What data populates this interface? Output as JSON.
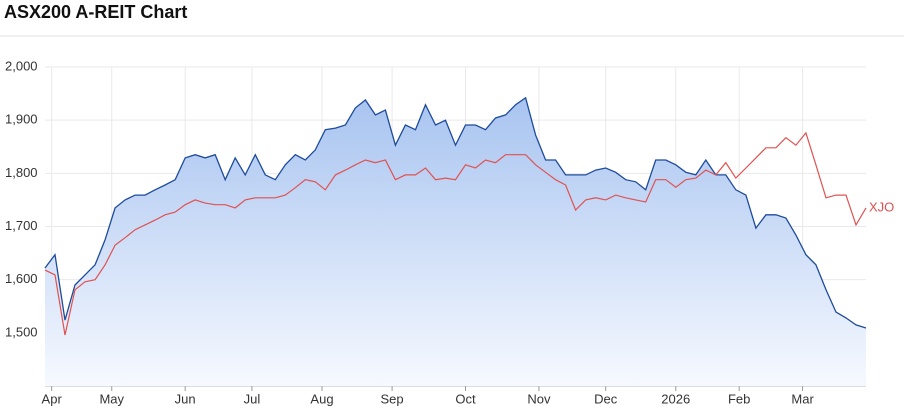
{
  "chart_data": {
    "type": "line",
    "title": "ASX200 A-REIT Chart",
    "x": [
      0,
      3,
      6,
      9,
      12,
      15,
      18,
      21,
      24,
      27,
      30,
      33,
      36,
      39,
      42,
      45,
      48,
      51,
      54,
      57,
      60,
      63,
      66,
      69,
      72,
      75,
      78,
      81,
      84,
      87,
      90,
      93,
      96,
      99,
      102,
      105,
      108,
      111,
      114,
      117,
      120,
      123,
      126,
      129,
      132,
      135,
      138,
      141,
      144,
      147,
      150,
      153,
      156,
      159,
      162,
      165,
      168,
      171,
      174,
      177,
      180,
      183,
      186,
      189,
      192,
      195,
      198,
      201,
      204,
      207,
      210,
      213,
      216,
      219,
      222,
      225,
      228,
      231,
      234,
      237,
      240,
      243,
      246
    ],
    "xlim": [
      0,
      246
    ],
    "xticks": [
      {
        "value": 2,
        "label": "Apr"
      },
      {
        "value": 20,
        "label": "May"
      },
      {
        "value": 42,
        "label": "Jun"
      },
      {
        "value": 62,
        "label": "Jul"
      },
      {
        "value": 83,
        "label": "Aug"
      },
      {
        "value": 104,
        "label": "Sep"
      },
      {
        "value": 126,
        "label": "Oct"
      },
      {
        "value": 148,
        "label": "Nov"
      },
      {
        "value": 168,
        "label": "Dec"
      },
      {
        "value": 189,
        "label": "2026"
      },
      {
        "value": 208,
        "label": "Feb"
      },
      {
        "value": 227,
        "label": "Mar"
      }
    ],
    "ylim": [
      1400,
      2000
    ],
    "yticks": [
      {
        "value": 1500,
        "label": "1,500"
      },
      {
        "value": 1600,
        "label": "1,600"
      },
      {
        "value": 1700,
        "label": "1,700"
      },
      {
        "value": 1800,
        "label": "1,800"
      },
      {
        "value": 1900,
        "label": "1,900"
      },
      {
        "value": 2000,
        "label": "2,000"
      }
    ],
    "grid": true,
    "series": [
      {
        "type": "area",
        "color": "#1d4b9b",
        "values": [
          1622,
          1647,
          1524,
          1590,
          1609,
          1628,
          1675,
          1735,
          1750,
          1759,
          1759,
          1769,
          1778,
          1788,
          1829,
          1835,
          1829,
          1835,
          1788,
          1829,
          1797,
          1835,
          1797,
          1788,
          1816,
          1835,
          1825,
          1844,
          1882,
          1885,
          1891,
          1923,
          1938,
          1910,
          1919,
          1853,
          1891,
          1882,
          1929,
          1891,
          1900,
          1853,
          1891,
          1891,
          1882,
          1904,
          1910,
          1929,
          1942,
          1872,
          1825,
          1825,
          1797,
          1797,
          1797,
          1806,
          1810,
          1802,
          1788,
          1784,
          1769,
          1825,
          1825,
          1816,
          1802,
          1797,
          1825,
          1797,
          1797,
          1769,
          1759,
          1697,
          1722,
          1722,
          1716,
          1684,
          1647,
          1628,
          1581,
          1539,
          1528,
          1515,
          1509
        ]
      },
      {
        "type": "line",
        "name": "XJO",
        "color": "#e05252",
        "values": [
          1618,
          1609,
          1496,
          1581,
          1596,
          1600,
          1628,
          1665,
          1679,
          1694,
          1703,
          1712,
          1722,
          1727,
          1741,
          1750,
          1744,
          1741,
          1741,
          1735,
          1750,
          1754,
          1754,
          1754,
          1759,
          1773,
          1788,
          1784,
          1769,
          1797,
          1806,
          1816,
          1825,
          1820,
          1825,
          1788,
          1797,
          1797,
          1810,
          1788,
          1791,
          1788,
          1816,
          1810,
          1825,
          1820,
          1835,
          1835,
          1835,
          1816,
          1802,
          1788,
          1778,
          1731,
          1750,
          1754,
          1750,
          1759,
          1754,
          1750,
          1746,
          1788,
          1788,
          1774,
          1788,
          1791,
          1806,
          1797,
          1820,
          1791,
          1810,
          1829,
          1848,
          1848,
          1867,
          1853,
          1876,
          1816,
          1754,
          1759,
          1759,
          1703,
          1735
        ]
      }
    ]
  }
}
